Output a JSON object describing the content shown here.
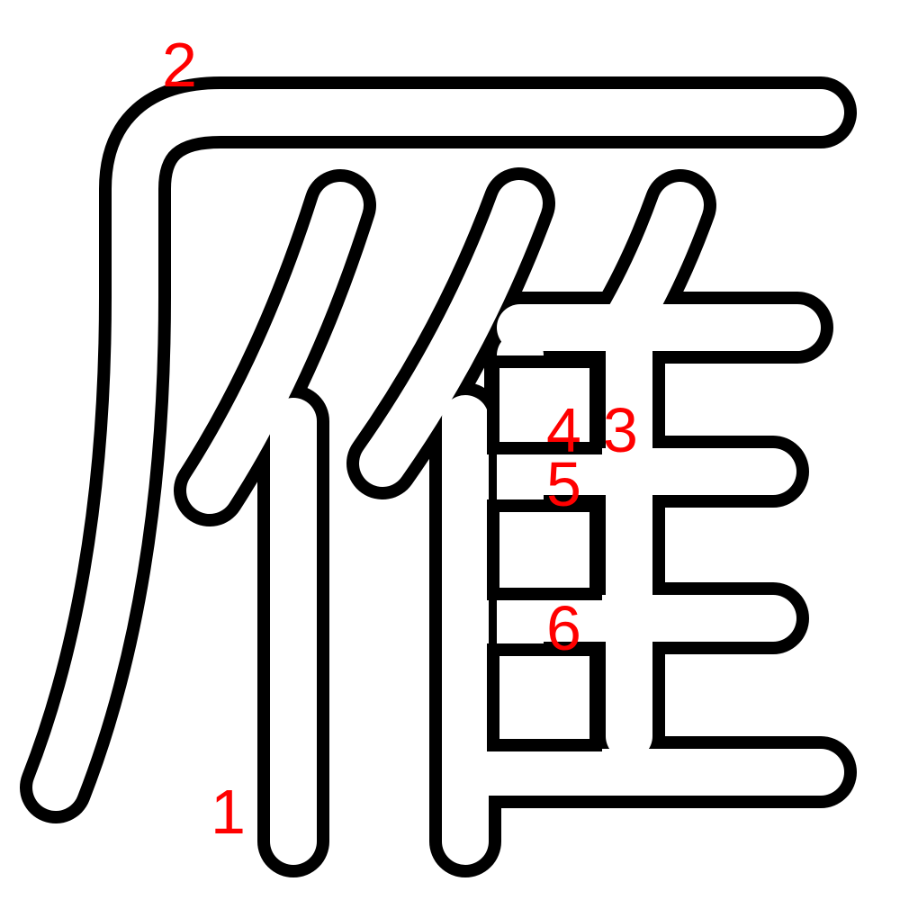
{
  "character": "雁",
  "colors": {
    "outline": "#000000",
    "fill": "#ffffff",
    "numbers": "#ff0000"
  },
  "stroke_numbers": [
    "1",
    "2",
    "3",
    "4",
    "5",
    "6"
  ]
}
